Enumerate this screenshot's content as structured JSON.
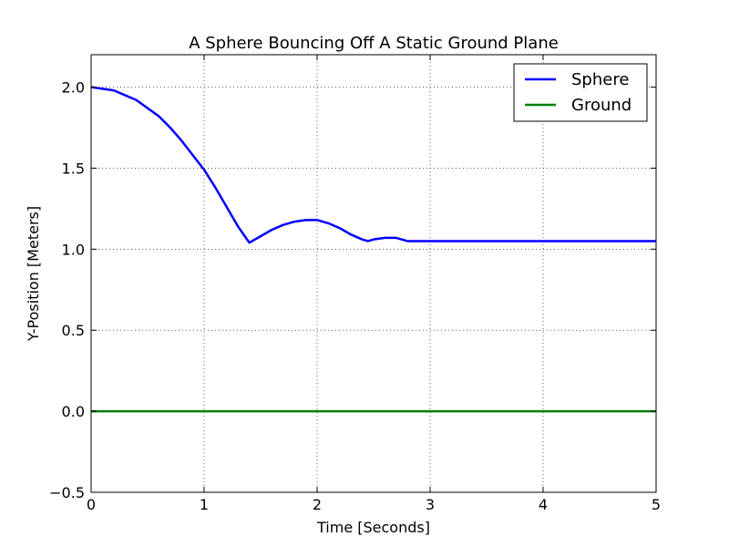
{
  "chart_data": {
    "type": "line",
    "title": "A Sphere Bouncing Off A Static Ground Plane",
    "xlabel": "Time [Seconds]",
    "ylabel": "Y-Position [Meters]",
    "xlim": [
      0,
      5
    ],
    "ylim": [
      -0.5,
      2.2
    ],
    "xticks": [
      0,
      1,
      2,
      3,
      4,
      5
    ],
    "xtick_labels": [
      "0",
      "1",
      "2",
      "3",
      "4",
      "5"
    ],
    "yticks": [
      -0.5,
      0.0,
      0.5,
      1.0,
      1.5,
      2.0
    ],
    "ytick_labels": [
      "−0.5",
      "0.0",
      "0.5",
      "1.0",
      "1.5",
      "2.0"
    ],
    "grid": true,
    "legend_position": "top-right",
    "series": [
      {
        "name": "Sphere",
        "color": "#0000ff",
        "x": [
          0,
          0.1,
          0.2,
          0.3,
          0.4,
          0.5,
          0.6,
          0.7,
          0.8,
          0.9,
          1.0,
          1.1,
          1.2,
          1.3,
          1.4,
          1.5,
          1.6,
          1.7,
          1.8,
          1.9,
          2.0,
          2.1,
          2.2,
          2.3,
          2.4,
          2.45,
          2.5,
          2.6,
          2.7,
          2.8,
          3.0,
          3.5,
          4.0,
          4.5,
          5.0
        ],
        "y": [
          2.0,
          1.99,
          1.98,
          1.95,
          1.92,
          1.87,
          1.82,
          1.75,
          1.67,
          1.58,
          1.49,
          1.38,
          1.26,
          1.14,
          1.04,
          1.08,
          1.12,
          1.15,
          1.17,
          1.18,
          1.18,
          1.16,
          1.13,
          1.09,
          1.06,
          1.05,
          1.06,
          1.07,
          1.07,
          1.05,
          1.05,
          1.05,
          1.05,
          1.05,
          1.05
        ]
      },
      {
        "name": "Ground",
        "color": "#008000",
        "x": [
          0,
          5
        ],
        "y": [
          0,
          0
        ]
      }
    ]
  }
}
